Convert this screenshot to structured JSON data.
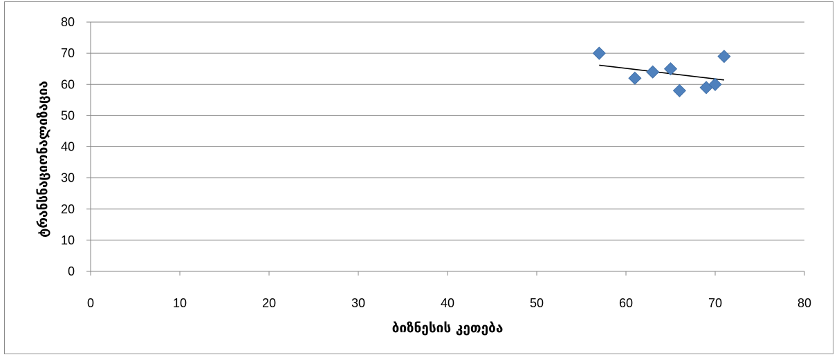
{
  "chart_data": {
    "type": "scatter",
    "title": "",
    "xlabel": "ბიზნესის კეთება",
    "ylabel": "ტრანსნაციონალიზაცია",
    "xlim": [
      0,
      80
    ],
    "ylim": [
      0,
      80
    ],
    "xticks": [
      0,
      10,
      20,
      30,
      40,
      50,
      60,
      70,
      80
    ],
    "yticks": [
      0,
      10,
      20,
      30,
      40,
      50,
      60,
      70,
      80
    ],
    "grid": "horizontal",
    "legend": "none",
    "series": [
      {
        "marker": "diamond",
        "color": "#4F81BD",
        "points": [
          {
            "x": 57,
            "y": 70
          },
          {
            "x": 61,
            "y": 62
          },
          {
            "x": 63,
            "y": 64
          },
          {
            "x": 65,
            "y": 65
          },
          {
            "x": 66,
            "y": 58
          },
          {
            "x": 69,
            "y": 59
          },
          {
            "x": 70,
            "y": 60
          },
          {
            "x": 71,
            "y": 69
          }
        ],
        "trendline": {
          "type": "linear",
          "color": "#000000"
        }
      }
    ]
  }
}
